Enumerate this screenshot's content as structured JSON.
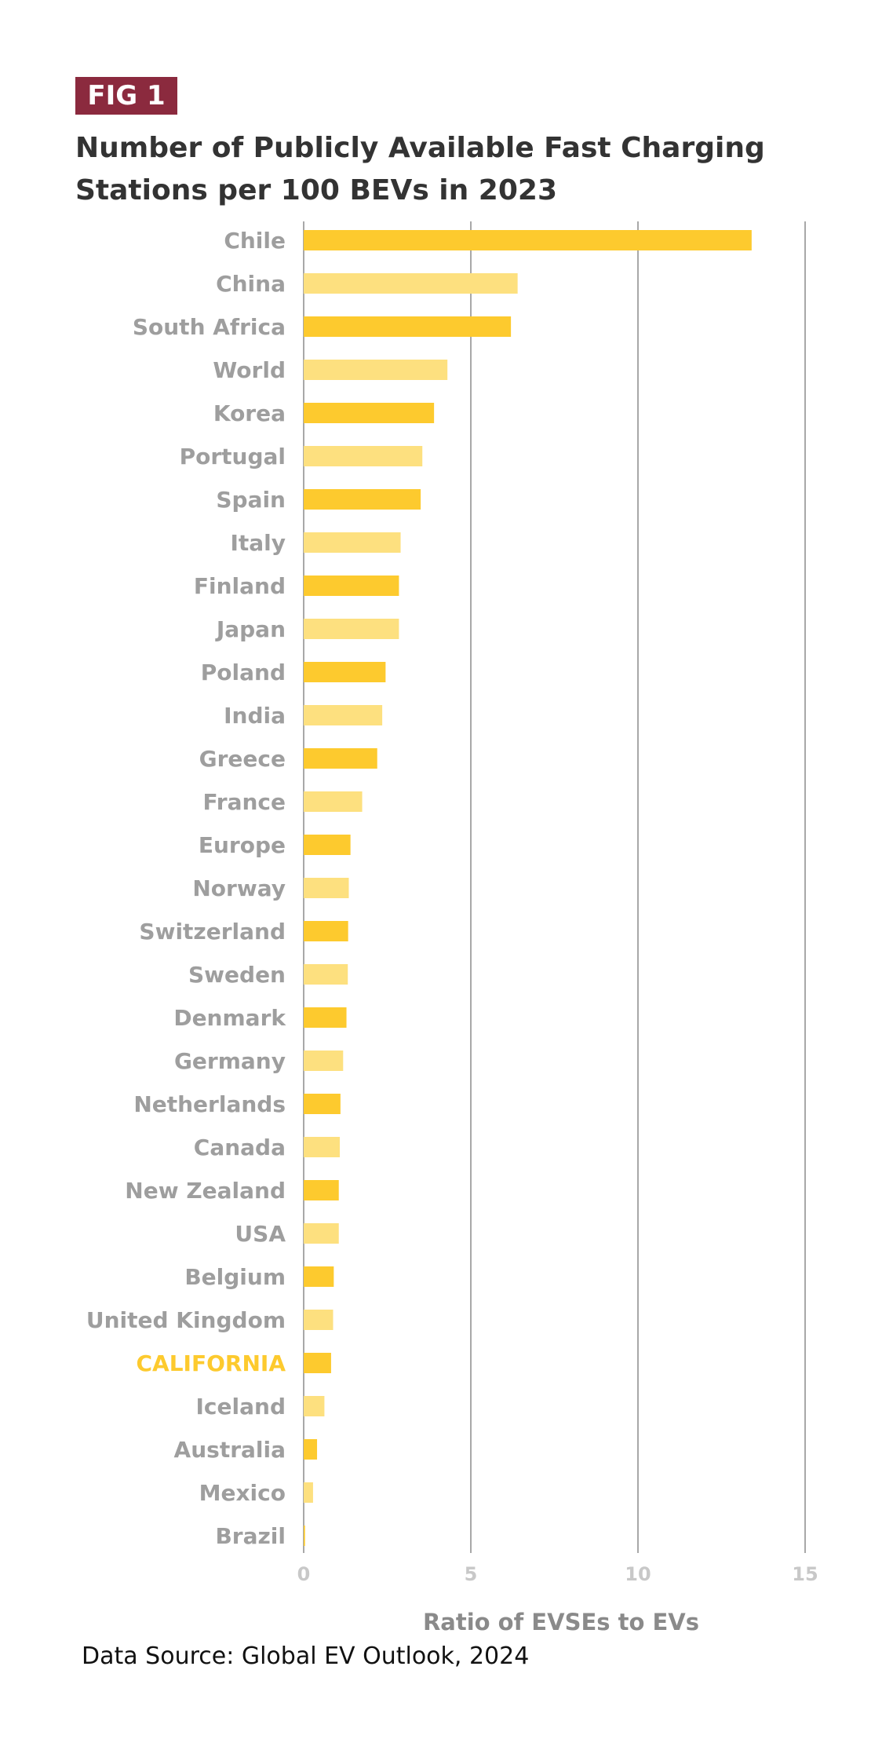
{
  "badge": "FIG 1",
  "title": "Number of Publicly Available Fast Charging Stations per 100 BEVs in 2023",
  "source": "Data Source: Global EV Outlook, 2024",
  "colors": {
    "bar_dark": "#fdca2e",
    "bar_light": "#fde07f",
    "highlight_label": "#fdca2e",
    "label": "#9e9e9e",
    "grid": "#8c8c8c",
    "badge": "#8b2a3e"
  },
  "chart_data": {
    "type": "bar",
    "orientation": "horizontal",
    "title": "Number of Publicly Available Fast Charging Stations per 100 BEVs in 2023",
    "xlabel": "Ratio of EVSEs to EVs",
    "ylabel": "",
    "xlim": [
      0,
      15
    ],
    "xticks": [
      "0",
      "5",
      "10",
      "15"
    ],
    "grid": true,
    "highlight": "CALIFORNIA",
    "categories": [
      "Chile",
      "China",
      "South Africa",
      "World",
      "Korea",
      "Portugal",
      "Spain",
      "Italy",
      "Finland",
      "Japan",
      "Poland",
      "India",
      "Greece",
      "France",
      "Europe",
      "Norway",
      "Switzerland",
      "Sweden",
      "Denmark",
      "Germany",
      "Netherlands",
      "Canada",
      "New Zealand",
      "USA",
      "Belgium",
      "United Kingdom",
      "CALIFORNIA",
      "Iceland",
      "Australia",
      "Mexico",
      "Brazil"
    ],
    "values": [
      13.4,
      6.4,
      6.2,
      4.3,
      3.9,
      3.55,
      3.5,
      2.9,
      2.85,
      2.85,
      2.45,
      2.35,
      2.2,
      1.75,
      1.4,
      1.35,
      1.33,
      1.32,
      1.28,
      1.18,
      1.1,
      1.08,
      1.05,
      1.05,
      0.9,
      0.88,
      0.82,
      0.62,
      0.4,
      0.28,
      0.04
    ]
  }
}
